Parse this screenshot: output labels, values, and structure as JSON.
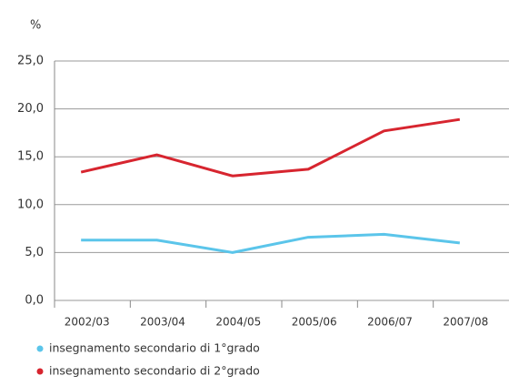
{
  "chart_data": {
    "type": "line",
    "y_label": "%",
    "categories": [
      "2002/03",
      "2003/04",
      "2004/05",
      "2005/06",
      "2006/07",
      "2007/08"
    ],
    "series": [
      {
        "name": "insegnamento secondario di 1°grado",
        "color": "#5bc5ea",
        "values": [
          6.3,
          6.3,
          5.0,
          6.6,
          6.9,
          6.0
        ]
      },
      {
        "name": "insegnamento secondario di 2°grado",
        "color": "#d7252f",
        "values": [
          13.4,
          15.2,
          13.0,
          13.7,
          17.7,
          18.9
        ]
      }
    ],
    "ylim": [
      0,
      25
    ],
    "yticks": [
      {
        "value": 0,
        "label": "0,0"
      },
      {
        "value": 5,
        "label": "5,0"
      },
      {
        "value": 10,
        "label": "10,0"
      },
      {
        "value": 15,
        "label": "15,0"
      },
      {
        "value": 20,
        "label": "20,0"
      },
      {
        "value": 25,
        "label": "25,0"
      }
    ],
    "grid": true
  }
}
